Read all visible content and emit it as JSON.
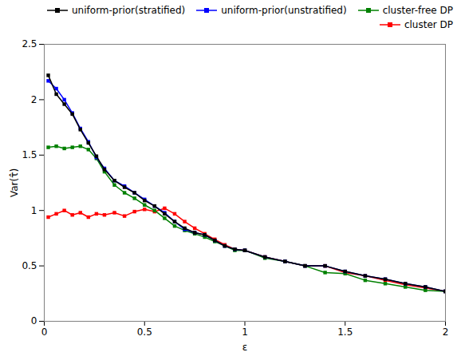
{
  "chart_data": {
    "type": "line",
    "title": "",
    "xlabel": "ε",
    "ylabel": "Var(τ̂)",
    "x": [
      0.02,
      0.06,
      0.1,
      0.14,
      0.18,
      0.22,
      0.26,
      0.3,
      0.35,
      0.4,
      0.45,
      0.5,
      0.55,
      0.6,
      0.65,
      0.7,
      0.75,
      0.8,
      0.85,
      0.9,
      0.95,
      1.0,
      1.1,
      1.2,
      1.3,
      1.4,
      1.5,
      1.6,
      1.7,
      1.8,
      1.9,
      2.0
    ],
    "series": [
      {
        "name": "uniform-prior(stratified)",
        "color": "#000000",
        "values": [
          2.22,
          2.05,
          1.96,
          1.87,
          1.73,
          1.61,
          1.49,
          1.37,
          1.27,
          1.21,
          1.16,
          1.09,
          1.04,
          0.97,
          0.9,
          0.84,
          0.8,
          0.78,
          0.73,
          0.68,
          0.65,
          0.64,
          0.58,
          0.54,
          0.5,
          0.5,
          0.45,
          0.41,
          0.38,
          0.34,
          0.31,
          0.27
        ]
      },
      {
        "name": "uniform-prior(unstratified)",
        "color": "#0000FF",
        "values": [
          2.17,
          2.1,
          2.0,
          1.88,
          1.74,
          1.62,
          1.48,
          1.38,
          1.27,
          1.22,
          1.16,
          1.1,
          1.04,
          0.98,
          0.9,
          0.83,
          0.8,
          0.78,
          0.73,
          0.68,
          0.65,
          0.64,
          0.58,
          0.54,
          0.5,
          0.5,
          0.45,
          0.41,
          0.38,
          0.34,
          0.31,
          0.27
        ]
      },
      {
        "name": "cluster-free DP",
        "color": "#008000",
        "values": [
          1.57,
          1.58,
          1.56,
          1.57,
          1.58,
          1.55,
          1.47,
          1.35,
          1.23,
          1.16,
          1.11,
          1.05,
          1.0,
          0.93,
          0.86,
          0.82,
          0.79,
          0.76,
          0.72,
          0.68,
          0.64,
          0.64,
          0.57,
          0.54,
          0.5,
          0.44,
          0.43,
          0.37,
          0.34,
          0.31,
          0.28,
          0.27
        ]
      },
      {
        "name": "cluster DP",
        "color": "#FF0000",
        "values": [
          0.94,
          0.97,
          1.0,
          0.96,
          0.98,
          0.94,
          0.97,
          0.96,
          0.98,
          0.95,
          0.99,
          1.01,
          0.99,
          1.02,
          0.97,
          0.9,
          0.84,
          0.79,
          0.74,
          0.69,
          0.65,
          0.64,
          0.58,
          0.54,
          0.5,
          0.5,
          0.44,
          0.41,
          0.37,
          0.33,
          0.3,
          0.27
        ]
      }
    ],
    "xlim": [
      0,
      2
    ],
    "ylim": [
      0,
      2.5
    ],
    "xticks": [
      0,
      0.5,
      1,
      1.5,
      2
    ],
    "yticks": [
      0,
      0.5,
      1,
      1.5,
      2,
      2.5
    ],
    "marker": "square",
    "legend": "top-right",
    "grid": false
  }
}
